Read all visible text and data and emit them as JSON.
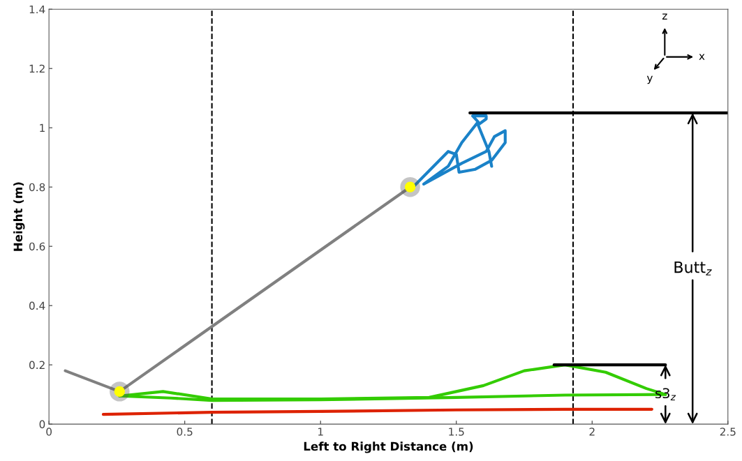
{
  "chart_data": {
    "type": "line",
    "xlabel": "Left to Right Distance (m)",
    "ylabel": "Height (m)",
    "xlim": [
      0,
      2.5
    ],
    "xticks": [
      0,
      0.5,
      1,
      1.5,
      2,
      2.5
    ],
    "ylim": [
      0,
      1.4
    ],
    "yticks": [
      0,
      0.2,
      0.4,
      0.6,
      0.8,
      1,
      1.2,
      1.4
    ],
    "grid": false,
    "series": [
      {
        "color": "#808080",
        "x": [
          0.06,
          0.26,
          1.33
        ],
        "values": [
          0.18,
          0.11,
          0.8
        ]
      },
      {
        "color": "#1a82c8",
        "x": [
          1.33,
          1.47,
          1.5,
          1.51,
          1.57,
          1.63,
          1.68,
          1.68,
          1.64,
          1.61,
          1.52,
          1.38,
          1.47,
          1.52,
          1.58,
          1.56,
          1.61,
          1.61,
          1.58,
          1.62,
          1.63
        ],
        "values": [
          0.79,
          0.92,
          0.91,
          0.85,
          0.86,
          0.89,
          0.95,
          0.99,
          0.97,
          0.92,
          0.88,
          0.81,
          0.87,
          0.95,
          1.02,
          1.04,
          1.04,
          1.03,
          1.01,
          0.92,
          0.87
        ]
      },
      {
        "color": "#33cc00",
        "x": [
          0.26,
          0.42,
          0.6,
          1.0,
          1.4,
          1.6,
          1.75,
          1.9,
          2.05,
          2.2,
          2.27
        ],
        "values": [
          0.095,
          0.11,
          0.085,
          0.085,
          0.09,
          0.13,
          0.18,
          0.2,
          0.175,
          0.12,
          0.1
        ]
      },
      {
        "color": "#33cc00",
        "x": [
          0.26,
          0.45,
          0.6,
          1.0,
          1.5,
          1.9,
          2.27
        ],
        "values": [
          0.095,
          0.088,
          0.08,
          0.082,
          0.09,
          0.098,
          0.1
        ]
      },
      {
        "color": "#dd2200",
        "x": [
          0.2,
          0.6,
          1.0,
          1.5,
          1.9,
          2.22
        ],
        "values": [
          0.033,
          0.04,
          0.043,
          0.048,
          0.05,
          0.05
        ]
      },
      {
        "color": "#000000",
        "x": [
          1.55,
          2.5
        ],
        "values": [
          1.05,
          1.05
        ]
      },
      {
        "color": "#000000",
        "x": [
          1.86,
          2.27
        ],
        "values": [
          0.2,
          0.2
        ]
      },
      {
        "type": "scatter",
        "color": "#ffff00",
        "x": [
          0.26,
          1.33
        ],
        "values": [
          0.11,
          0.8
        ]
      }
    ],
    "ref_lines": [
      {
        "axis": "x",
        "value": 0.6,
        "color": "#000000",
        "line_style": "dashed"
      },
      {
        "axis": "x",
        "value": 1.93,
        "color": "#000000",
        "line_style": "dashed"
      }
    ],
    "annotations": [
      {
        "text": "Butt$_{z}$",
        "x": 2.37,
        "y": 1.05
      },
      {
        "text": "s3$_{z}$",
        "x": 2.27,
        "y": 0.2
      },
      "z",
      "x",
      "y"
    ]
  }
}
